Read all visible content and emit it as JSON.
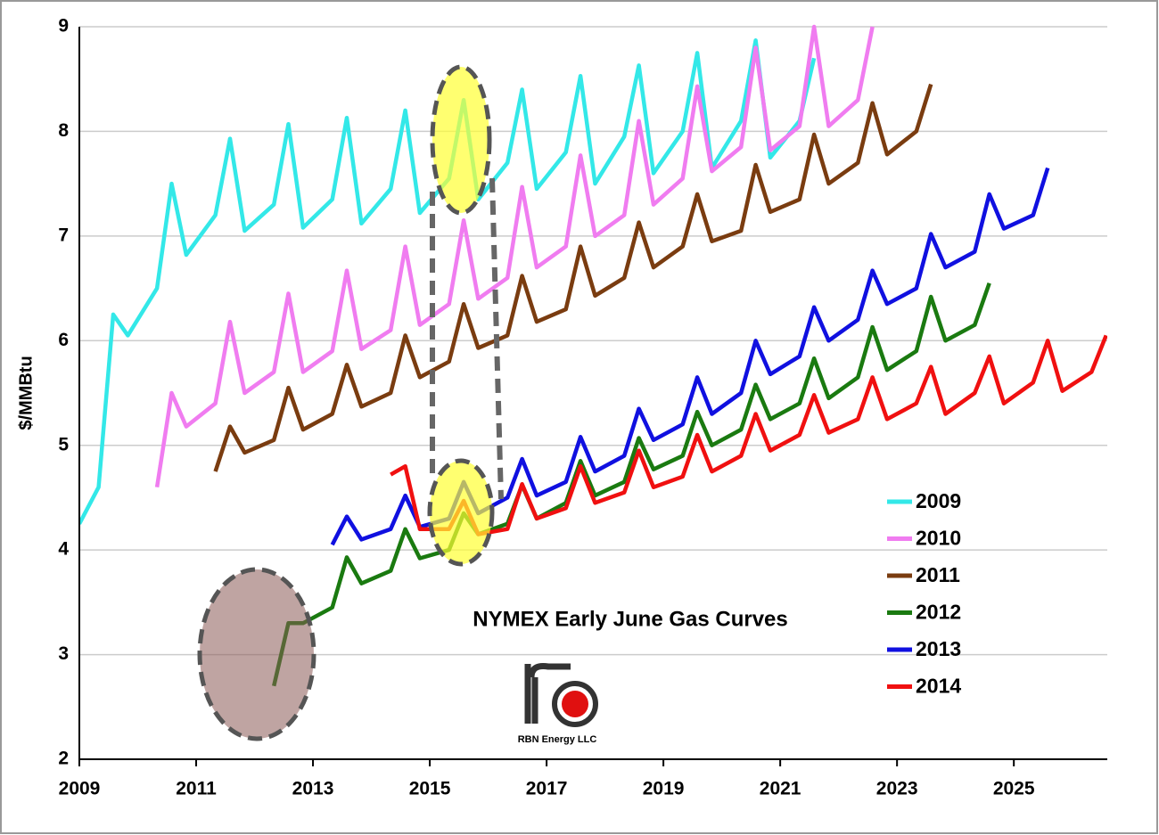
{
  "chart_data": {
    "type": "line",
    "title": "NYMEX Early June Gas Curves",
    "y_label": "$/MMBtu",
    "logo_text": "RBN Energy LLC",
    "xlim": [
      2009,
      2026.6
    ],
    "xticks": [
      2009,
      2011,
      2013,
      2015,
      2017,
      2019,
      2021,
      2023,
      2025
    ],
    "ylim": [
      2,
      9
    ],
    "yticks": [
      2,
      3,
      4,
      5,
      6,
      7,
      8,
      9
    ],
    "grid": true,
    "legend": "right",
    "x": [
      2009,
      2009.33,
      2009.58,
      2009.83,
      2010.33,
      2010.58,
      2010.83,
      2011.33,
      2011.58,
      2011.83,
      2012.33,
      2012.58,
      2012.83,
      2013.33,
      2013.58,
      2013.83,
      2014.33,
      2014.58,
      2014.83,
      2015.33,
      2015.58,
      2015.83,
      2016.33,
      2016.58,
      2016.83,
      2017.33,
      2017.58,
      2017.83,
      2018.33,
      2018.58,
      2018.83,
      2019.33,
      2019.58,
      2019.83,
      2020.33,
      2020.58,
      2020.83,
      2021.33,
      2021.58,
      2021.83,
      2022.33,
      2022.58,
      2022.83,
      2023.33,
      2023.58,
      2023.83,
      2024.33,
      2024.58,
      2024.83,
      2025.33,
      2025.58,
      2025.83,
      2026.33,
      2026.58
    ],
    "series": [
      {
        "name": "2009",
        "color": "#33e8e8",
        "values": [
          4.25,
          4.6,
          6.25,
          6.05,
          6.5,
          7.5,
          6.82,
          7.2,
          7.93,
          7.05,
          7.3,
          8.07,
          7.08,
          7.35,
          8.13,
          7.12,
          7.45,
          8.2,
          7.22,
          7.55,
          8.3,
          7.35,
          7.7,
          8.4,
          7.45,
          7.8,
          8.53,
          7.5,
          7.95,
          8.63,
          7.6,
          8.0,
          8.75,
          7.65,
          8.1,
          8.87,
          7.75,
          8.1,
          8.7,
          null,
          null,
          null,
          null,
          null,
          null,
          null,
          null,
          null,
          null,
          null,
          null,
          null,
          null,
          null
        ]
      },
      {
        "name": "2010",
        "color": "#f07cf0",
        "values": [
          null,
          null,
          null,
          null,
          4.6,
          5.5,
          5.18,
          5.4,
          6.18,
          5.5,
          5.7,
          6.45,
          5.7,
          5.9,
          6.67,
          5.92,
          6.1,
          6.9,
          6.15,
          6.35,
          7.15,
          6.4,
          6.6,
          7.47,
          6.7,
          6.9,
          7.77,
          7.0,
          7.2,
          8.1,
          7.3,
          7.55,
          8.43,
          7.62,
          7.85,
          8.8,
          7.82,
          8.05,
          9.0,
          8.05,
          8.3,
          9.0,
          null,
          null,
          null,
          null,
          null,
          null,
          null,
          null,
          null,
          null,
          null,
          null
        ]
      },
      {
        "name": "2011",
        "color": "#7a3c10",
        "values": [
          null,
          null,
          null,
          null,
          null,
          null,
          null,
          4.75,
          5.18,
          4.93,
          5.05,
          5.55,
          5.15,
          5.3,
          5.77,
          5.37,
          5.5,
          6.05,
          5.65,
          5.8,
          6.35,
          5.93,
          6.05,
          6.62,
          6.18,
          6.3,
          6.9,
          6.43,
          6.6,
          7.13,
          6.7,
          6.9,
          7.4,
          6.95,
          7.05,
          7.68,
          7.23,
          7.35,
          7.97,
          7.5,
          7.7,
          8.27,
          7.78,
          8.0,
          8.45,
          null,
          null,
          null,
          null,
          null,
          null,
          null,
          null,
          null
        ]
      },
      {
        "name": "2012",
        "color": "#1a7a10",
        "values": [
          null,
          null,
          null,
          null,
          null,
          null,
          null,
          null,
          null,
          null,
          2.7,
          3.3,
          3.3,
          3.45,
          3.93,
          3.68,
          3.8,
          4.2,
          3.92,
          4.0,
          4.35,
          4.15,
          4.25,
          4.62,
          4.3,
          4.45,
          4.85,
          4.52,
          4.65,
          5.07,
          4.77,
          4.9,
          5.32,
          5.0,
          5.15,
          5.58,
          5.25,
          5.4,
          5.83,
          5.45,
          5.65,
          6.13,
          5.72,
          5.9,
          6.42,
          6.0,
          6.15,
          6.55,
          null,
          null,
          null,
          null,
          null,
          null
        ]
      },
      {
        "name": "2013",
        "color": "#1010e0",
        "values": [
          null,
          null,
          null,
          null,
          null,
          null,
          null,
          null,
          null,
          null,
          null,
          null,
          null,
          4.05,
          4.32,
          4.1,
          4.2,
          4.52,
          4.22,
          4.3,
          4.65,
          4.35,
          4.5,
          4.87,
          4.52,
          4.65,
          5.08,
          4.75,
          4.9,
          5.35,
          5.05,
          5.2,
          5.65,
          5.3,
          5.5,
          6.0,
          5.68,
          5.85,
          6.32,
          6.0,
          6.2,
          6.67,
          6.35,
          6.5,
          7.02,
          6.7,
          6.85,
          7.4,
          7.07,
          7.2,
          7.65,
          null,
          null,
          null
        ]
      },
      {
        "name": "2014",
        "color": "#f01010",
        "values": [
          null,
          null,
          null,
          null,
          null,
          null,
          null,
          null,
          null,
          null,
          null,
          null,
          null,
          null,
          null,
          null,
          4.72,
          4.8,
          4.2,
          4.2,
          4.47,
          4.15,
          4.2,
          4.63,
          4.3,
          4.4,
          4.8,
          4.45,
          4.55,
          4.95,
          4.6,
          4.7,
          5.1,
          4.75,
          4.9,
          5.3,
          4.95,
          5.1,
          5.48,
          5.12,
          5.25,
          5.65,
          5.25,
          5.4,
          5.75,
          5.3,
          5.5,
          5.85,
          5.4,
          5.6,
          6.0,
          5.52,
          5.7,
          6.05
        ]
      }
    ]
  }
}
